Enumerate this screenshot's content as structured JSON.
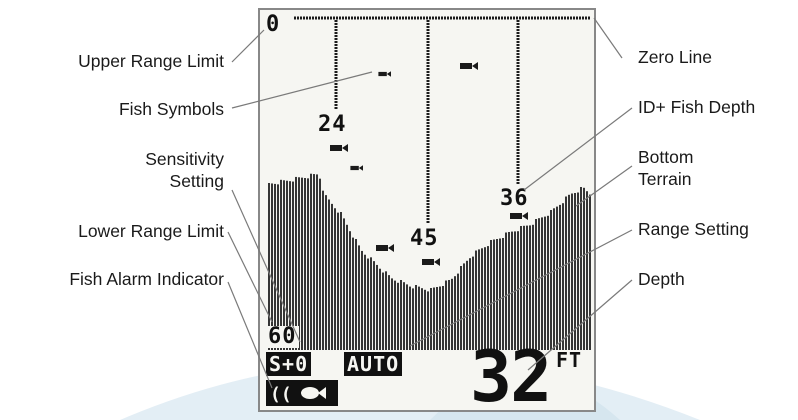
{
  "labels_left": {
    "upper_range_limit": "Upper Range Limit",
    "fish_symbols": "Fish Symbols",
    "sensitivity_line1": "Sensitivity",
    "sensitivity_line2": "Setting",
    "lower_range_limit": "Lower Range Limit",
    "fish_alarm_indicator": "Fish Alarm Indicator"
  },
  "labels_right": {
    "zero_line": "Zero Line",
    "id_fish_depth": "ID+ Fish Depth",
    "bottom_line1": "Bottom",
    "bottom_line2": "Terrain",
    "range_setting": "Range Setting",
    "depth": "Depth"
  },
  "display": {
    "upper_range": "0",
    "lower_range": "60",
    "fish_depth_1": "24",
    "fish_depth_2": "45",
    "fish_depth_3": "36",
    "sensitivity": "S+0",
    "range_mode": "AUTO",
    "depth_value": "32",
    "depth_unit": "FT",
    "fish_alarm_symbol": "fish-alarm-icon"
  },
  "colors": {
    "lcd_pixel": "#1a1a1a",
    "screen_bg": "#f6f6f2",
    "watermark": "#dfeaf1"
  }
}
